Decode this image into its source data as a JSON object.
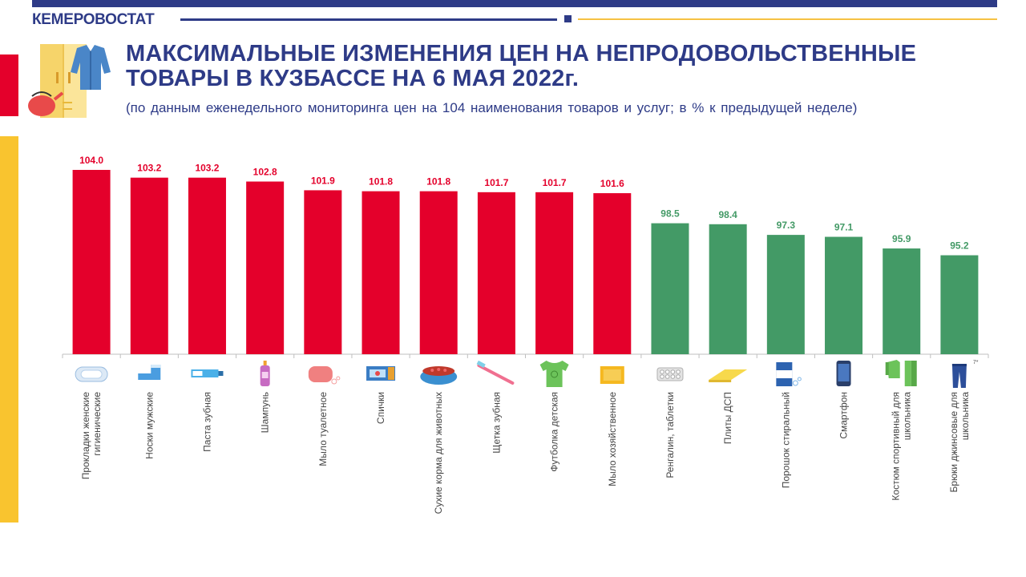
{
  "header": {
    "org": "КЕМЕРОВОСТАТ",
    "title_line1": "МАКСИМАЛЬНЫЕ ИЗМЕНЕНИЯ ЦЕН НА НЕПРОДОВОЛЬСТВЕННЫЕ",
    "title_line2": "ТОВАРЫ В КУЗБАССЕ НА 6 МАЯ 2022г.",
    "subtitle": "(по данным еженедельного мониторинга цен на 104 наименования товаров и услуг; в % к предыдущей неделе)"
  },
  "colors": {
    "navy": "#2e3b87",
    "increase": "#e4002b",
    "decrease": "#439a66",
    "accent_yellow": "#f9c42f"
  },
  "chart_data": {
    "type": "bar",
    "title": "МАКСИМАЛЬНЫЕ ИЗМЕНЕНИЯ ЦЕН НА НЕПРОДОВОЛЬСТВЕННЫЕ ТОВАРЫ В КУЗБАССЕ НА 6 МАЯ 2022г.",
    "categories": [
      [
        "Прокладки женские",
        "гигиенические"
      ],
      [
        "Носки мужские"
      ],
      [
        "Паста зубная"
      ],
      [
        "Шампунь"
      ],
      [
        "Мыло туалетное"
      ],
      [
        "Спички"
      ],
      [
        "Сухие корма для животных"
      ],
      [
        "Щетка зубная"
      ],
      [
        "Футболка детская"
      ],
      [
        "Мыло хозяйственное"
      ],
      [
        "Ренгалин, таблетки"
      ],
      [
        "Плиты ДСП"
      ],
      [
        "Порошок стиральный"
      ],
      [
        "Смартфон"
      ],
      [
        "Костюм спортивный для",
        "школьника"
      ],
      [
        "Брюки джинсовые для",
        "школьника"
      ]
    ],
    "values": [
      104.0,
      103.2,
      103.2,
      102.8,
      101.9,
      101.8,
      101.8,
      101.7,
      101.7,
      101.6,
      98.5,
      98.4,
      97.3,
      97.1,
      95.9,
      95.2
    ],
    "value_labels": [
      "104.0",
      "103.2",
      "103.2",
      "102.8",
      "101.9",
      "101.8",
      "101.8",
      "101.7",
      "101.7",
      "101.6",
      "98.5",
      "98.4",
      "97.3",
      "97.1",
      "95.9",
      "95.2"
    ],
    "series_colors": [
      "increase",
      "increase",
      "increase",
      "increase",
      "increase",
      "increase",
      "increase",
      "increase",
      "increase",
      "increase",
      "decrease",
      "decrease",
      "decrease",
      "decrease",
      "decrease",
      "decrease"
    ],
    "icons": [
      "pad-icon",
      "socks-icon",
      "toothpaste-icon",
      "shampoo-icon",
      "soap-icon",
      "matches-icon",
      "pet-food-icon",
      "toothbrush-icon",
      "tshirt-icon",
      "laundry-soap-icon",
      "pills-icon",
      "chipboard-icon",
      "washing-powder-icon",
      "smartphone-icon",
      "tracksuit-icon",
      "jeans-icon"
    ],
    "footnote_mark": "7*",
    "ylim": [
      85,
      104
    ],
    "grid": false,
    "legend": "none"
  }
}
